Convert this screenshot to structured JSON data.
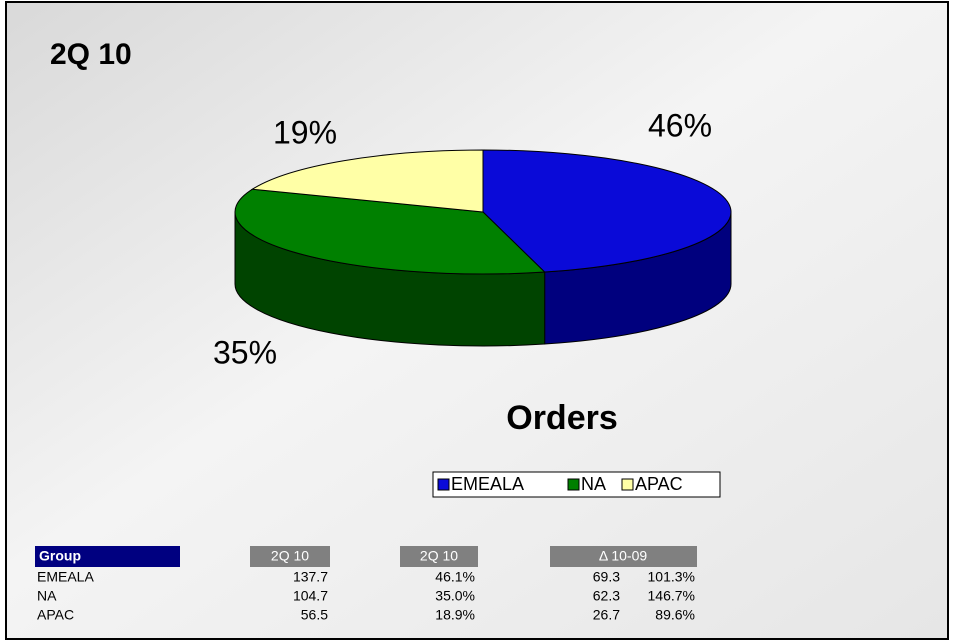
{
  "heading": "2Q 10",
  "chart_data": {
    "type": "pie",
    "title": "Orders",
    "categories": [
      "EMEALA",
      "NA",
      "APAC"
    ],
    "values": [
      46,
      35,
      19
    ],
    "value_labels": [
      "46%",
      "35%",
      "19%"
    ],
    "colors": [
      "#0a0ad8",
      "#008000",
      "#ffffa6"
    ],
    "side_colors": [
      "#00007e",
      "#004400",
      "#b0b070"
    ],
    "legend": "bottom"
  },
  "table": {
    "header": [
      "Group",
      "2Q 10",
      "2Q 10",
      "Δ 10-09"
    ],
    "rows": [
      [
        "EMEALA",
        "137.7",
        "46.1%",
        "69.3",
        "101.3%"
      ],
      [
        "NA",
        "104.7",
        "35.0%",
        "62.3",
        "146.7%"
      ],
      [
        "APAC",
        "56.5",
        "18.9%",
        "26.7",
        "89.6%"
      ]
    ]
  }
}
